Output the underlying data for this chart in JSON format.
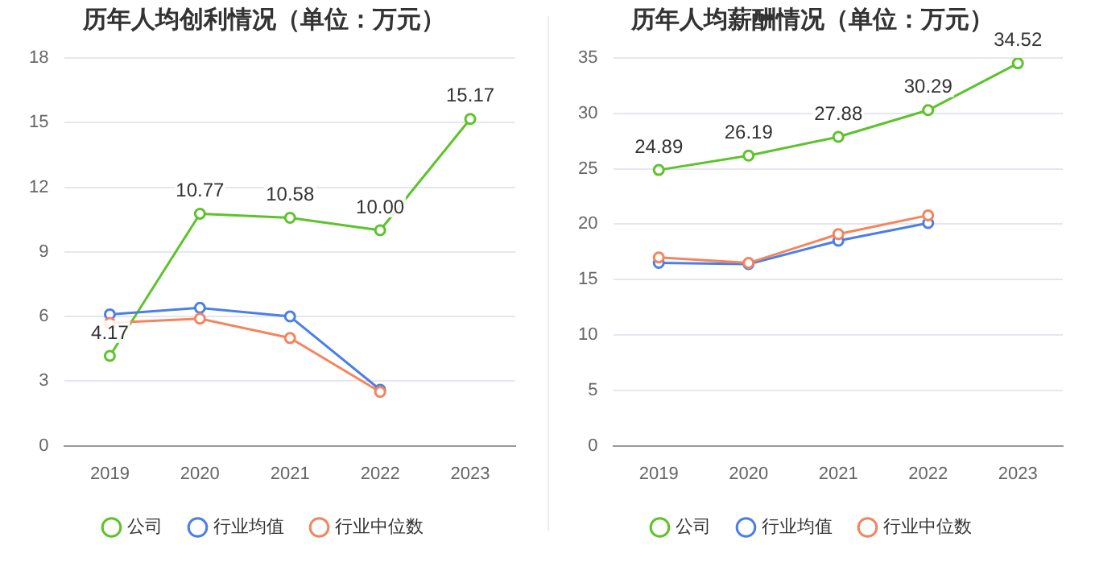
{
  "chart_data": [
    {
      "type": "line",
      "title": "历年人均创利情况（单位：万元）",
      "categories": [
        "2019",
        "2020",
        "2021",
        "2022",
        "2023"
      ],
      "ylim": [
        0,
        18
      ],
      "yticks": [
        0,
        3,
        6,
        9,
        12,
        15,
        18
      ],
      "grid": "y",
      "legend": "bottom",
      "marker": "circle",
      "series": [
        {
          "name": "公司",
          "color": "#5cc32a",
          "values": [
            4.17,
            10.77,
            10.58,
            10.0,
            15.17
          ],
          "value_labels": [
            "4.17",
            "10.77",
            "10.58",
            "10.00",
            "15.17"
          ]
        },
        {
          "name": "行业均值",
          "color": "#4a7fe8",
          "values": [
            6.1,
            6.4,
            6.0,
            2.6,
            null
          ]
        },
        {
          "name": "行业中位数",
          "color": "#f5845d",
          "values": [
            5.7,
            5.9,
            5.0,
            2.5,
            null
          ]
        }
      ]
    },
    {
      "type": "line",
      "title": "历年人均薪酬情况（单位：万元）",
      "categories": [
        "2019",
        "2020",
        "2021",
        "2022",
        "2023"
      ],
      "ylim": [
        0,
        35
      ],
      "yticks": [
        0,
        5,
        10,
        15,
        20,
        25,
        30,
        35
      ],
      "grid": "y",
      "legend": "bottom",
      "marker": "circle",
      "series": [
        {
          "name": "公司",
          "color": "#5cc32a",
          "values": [
            24.89,
            26.19,
            27.88,
            30.29,
            34.52
          ],
          "value_labels": [
            "24.89",
            "26.19",
            "27.88",
            "30.29",
            "34.52"
          ]
        },
        {
          "name": "行业均值",
          "color": "#4a7fe8",
          "values": [
            16.5,
            16.4,
            18.5,
            20.1,
            null
          ]
        },
        {
          "name": "行业中位数",
          "color": "#f5845d",
          "values": [
            17.0,
            16.5,
            19.1,
            20.8,
            null
          ]
        }
      ]
    }
  ]
}
